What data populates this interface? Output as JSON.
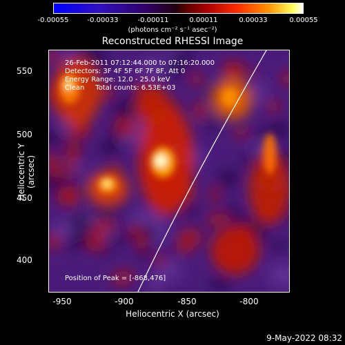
{
  "colorbar": {
    "ticks": [
      "-0.00055",
      "-0.00033",
      "-0.00011",
      "0.00011",
      "0.00033",
      "0.00055"
    ],
    "units": "(photons cm⁻² s⁻¹ asec⁻²)"
  },
  "title": "Reconstructed RHESSI Image",
  "info": {
    "time_range": "26-Feb-2011 07:12:44.000 to 07:16:20.000",
    "detectors": "Detectors: 3F 4F 5F 6F 7F 8F, Att 0",
    "energy": "Energy Range: 12.0 - 25.0 keV",
    "clean": "Clean     Total counts: 6.53E+03",
    "peak": "Position of Peak = [-868,476]"
  },
  "axes": {
    "xlabel": "Heliocentric X (arcsec)",
    "ylabel": "Heliocentric Y (arcsec)",
    "xticks": [
      "-950",
      "-900",
      "-850",
      "-800"
    ],
    "yticks": [
      "550",
      "500",
      "450",
      "400"
    ],
    "xlim": [
      -965,
      -772
    ],
    "ylim": [
      376,
      570
    ]
  },
  "footer": {
    "date": "9-May-2022 08:32"
  }
}
